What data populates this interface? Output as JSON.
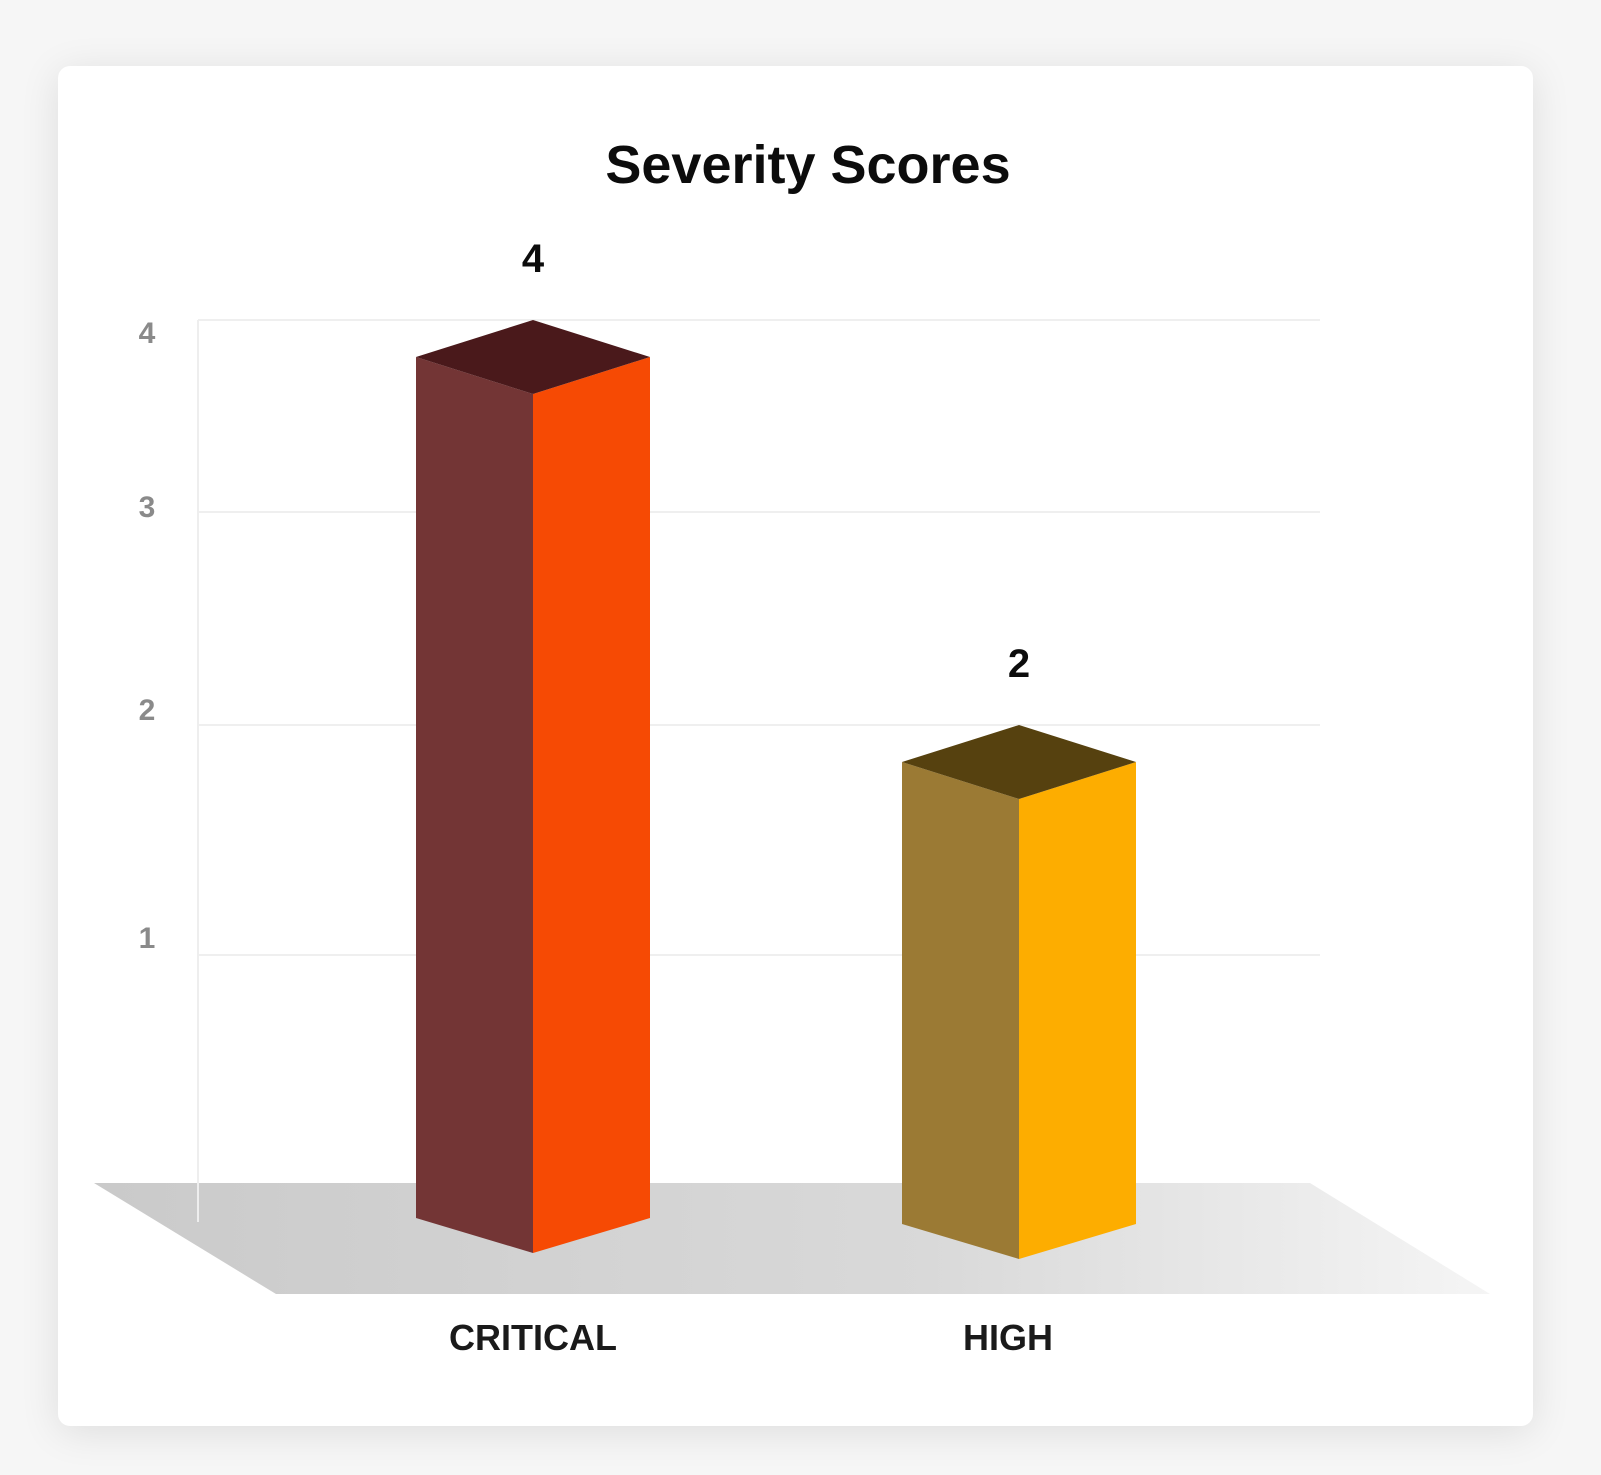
{
  "chart_data": {
    "type": "bar",
    "title": "Severity Scores",
    "xlabel": "",
    "ylabel": "",
    "categories": [
      "CRITICAL",
      "HIGH"
    ],
    "values": [
      4,
      2
    ],
    "data_labels": [
      "4",
      "2"
    ],
    "y_ticks": [
      1,
      2,
      3,
      4
    ],
    "ylim": [
      0,
      4
    ],
    "grid": true,
    "legend": "none",
    "style": "3d",
    "colors": [
      {
        "front": "#f64a04",
        "side": "#733535",
        "top": "#4a191b"
      },
      {
        "front": "#fdad00",
        "side": "#9b7a34",
        "top": "#56410f"
      }
    ]
  }
}
